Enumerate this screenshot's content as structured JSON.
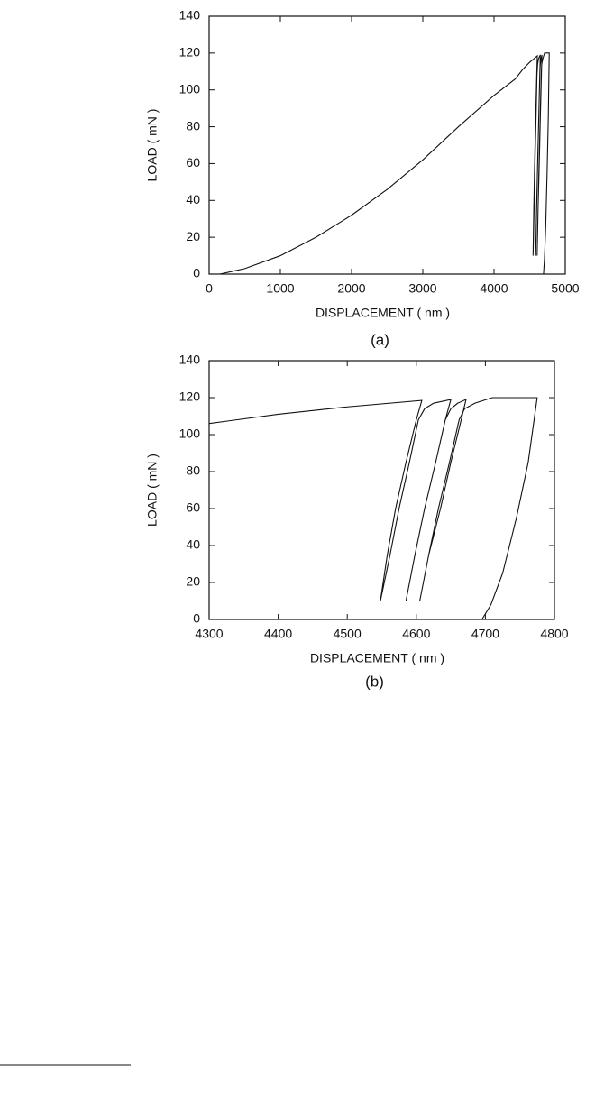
{
  "chart_data": [
    {
      "type": "line",
      "caption": "(a)",
      "xlabel": "DISPLACEMENT ( nm )",
      "ylabel": "LOAD ( mN )",
      "xlim": [
        0,
        5000
      ],
      "xticks": [
        0,
        1000,
        2000,
        3000,
        4000,
        5000
      ],
      "ylim": [
        0,
        140
      ],
      "yticks": [
        0,
        20,
        40,
        60,
        80,
        100,
        120,
        140
      ],
      "color": "#111111",
      "x": [
        150,
        500,
        1000,
        1500,
        2000,
        2500,
        3000,
        3500,
        4000,
        4300,
        4400,
        4500,
        4608,
        4600,
        4585,
        4570,
        4558,
        4548,
        4562,
        4575,
        4590,
        4603,
        4612,
        4625,
        4650,
        4642,
        4628,
        4612,
        4598,
        4585,
        4598,
        4612,
        4628,
        4642,
        4650,
        4660,
        4672,
        4665,
        4650,
        4635,
        4618,
        4605,
        4618,
        4632,
        4648,
        4662,
        4670,
        4685,
        4710,
        4775,
        4762,
        4745,
        4725,
        4708,
        4695
      ],
      "values": [
        0,
        3,
        10,
        20,
        32,
        46,
        62,
        80,
        97,
        106,
        111,
        115,
        118.5,
        108,
        85,
        60,
        35,
        10,
        35,
        60,
        85,
        108,
        114,
        117,
        119,
        108,
        85,
        60,
        35,
        10,
        35,
        60,
        85,
        108,
        114,
        117,
        119,
        108,
        85,
        60,
        35,
        10,
        35,
        60,
        85,
        108,
        114,
        117,
        120,
        120,
        85,
        55,
        25,
        8,
        0
      ]
    },
    {
      "type": "line",
      "caption": "(b)",
      "xlabel": "DISPLACEMENT ( nm )",
      "ylabel": "LOAD ( mN )",
      "xlim": [
        4300,
        4800
      ],
      "xticks": [
        4300,
        4400,
        4500,
        4600,
        4700,
        4800
      ],
      "ylim": [
        0,
        140
      ],
      "yticks": [
        0,
        20,
        40,
        60,
        80,
        100,
        120,
        140
      ],
      "color": "#111111",
      "x": [
        4300,
        4400,
        4500,
        4608,
        4600,
        4585,
        4570,
        4558,
        4548,
        4562,
        4575,
        4590,
        4603,
        4612,
        4625,
        4650,
        4642,
        4628,
        4612,
        4598,
        4585,
        4598,
        4612,
        4628,
        4642,
        4650,
        4660,
        4672,
        4665,
        4650,
        4635,
        4618,
        4605,
        4618,
        4632,
        4648,
        4662,
        4670,
        4685,
        4710,
        4775,
        4762,
        4745,
        4725,
        4708,
        4695
      ],
      "values": [
        106,
        111,
        115,
        118.5,
        108,
        85,
        60,
        35,
        10,
        35,
        60,
        85,
        108,
        114,
        117,
        119,
        108,
        85,
        60,
        35,
        10,
        35,
        60,
        85,
        108,
        114,
        117,
        119,
        108,
        85,
        60,
        35,
        10,
        35,
        60,
        85,
        108,
        114,
        117,
        120,
        120,
        85,
        55,
        25,
        8,
        0
      ]
    }
  ]
}
